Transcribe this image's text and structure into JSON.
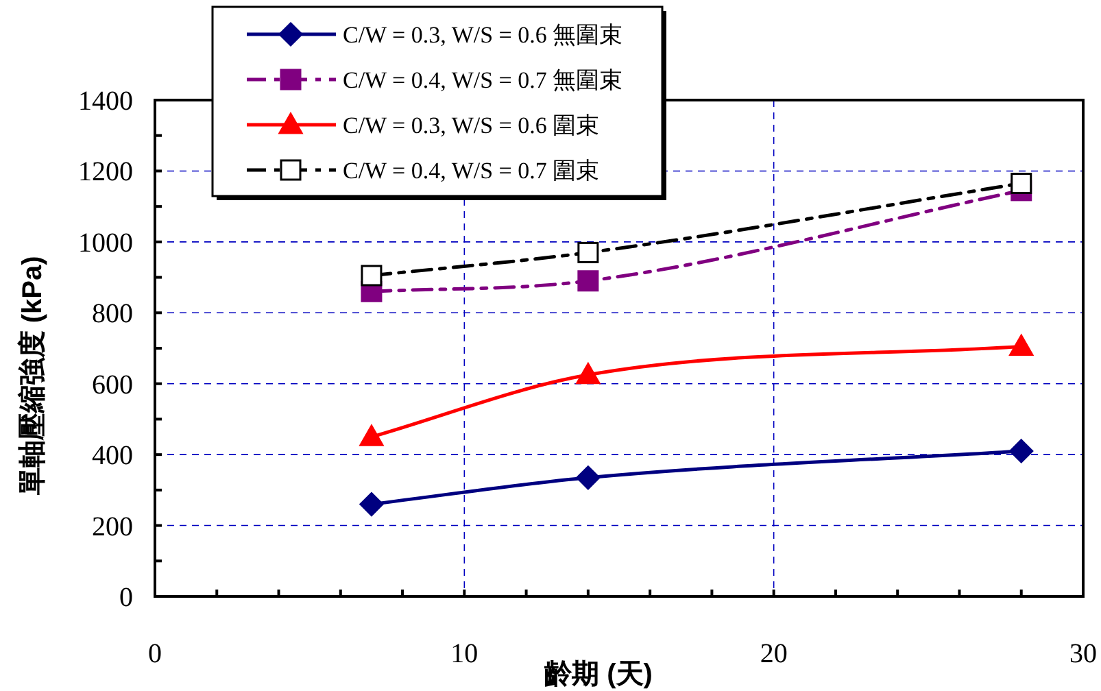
{
  "chart_data": {
    "type": "line",
    "xlabel": "齡期 (天)",
    "ylabel": "單軸壓縮強度 (kPa)",
    "x": [
      7,
      14,
      28
    ],
    "series": [
      {
        "name": "C/W = 0.3, W/S = 0.6 無圍束",
        "color": "#000080",
        "values": [
          260,
          335,
          410
        ],
        "marker": "diamond",
        "line_style": "solid"
      },
      {
        "name": "C/W = 0.4, W/S = 0.7 無圍束",
        "color": "#800080",
        "values": [
          860,
          890,
          1145
        ],
        "marker": "square",
        "line_style": "dashed"
      },
      {
        "name": "C/W = 0.3, W/S = 0.6 圍束",
        "color": "#ff0000",
        "values": [
          450,
          625,
          705
        ],
        "marker": "triangle",
        "line_style": "solid"
      },
      {
        "name": "C/W = 0.4, W/S = 0.7 圍束",
        "color": "#000000",
        "values": [
          905,
          970,
          1165
        ],
        "marker": "square",
        "line_style": "dashed"
      }
    ],
    "xlim": [
      0,
      30
    ],
    "xticks": [
      0,
      {
        "value": 2,
        "label": null
      },
      {
        "value": 4,
        "label": null
      },
      {
        "value": 6,
        "label": null
      },
      {
        "value": 8,
        "label": null
      },
      10,
      {
        "value": 12,
        "label": null
      },
      {
        "value": 14,
        "label": null
      },
      {
        "value": 16,
        "label": null
      },
      {
        "value": 18,
        "label": null
      },
      20,
      {
        "value": 22,
        "label": null
      },
      {
        "value": 24,
        "label": null
      },
      {
        "value": 26,
        "label": null
      },
      {
        "value": 28,
        "label": null
      },
      30
    ],
    "ylim": [
      0,
      1400
    ],
    "yticks": [
      0,
      {
        "value": 100,
        "label": null
      },
      200,
      {
        "value": 300,
        "label": null
      },
      400,
      {
        "value": 500,
        "label": null
      },
      600,
      {
        "value": 700,
        "label": null
      },
      800,
      {
        "value": 900,
        "label": null
      },
      1000,
      {
        "value": 1100,
        "label": null
      },
      1200,
      {
        "value": 1300,
        "label": null
      },
      1400
    ],
    "grid": true,
    "legend": "top"
  }
}
